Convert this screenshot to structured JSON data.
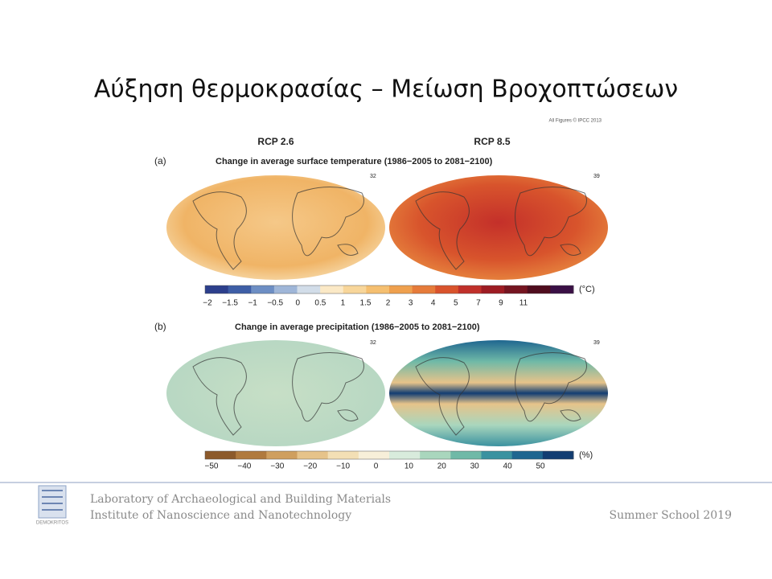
{
  "header": {
    "title": "Αύξηση θερμοκρασίας – Μείωση Βροχοπτώσεων"
  },
  "figure": {
    "credit": "All Figures © IPCC 2013",
    "scenarios": [
      "RCP 2.6",
      "RCP 8.5"
    ],
    "panels": [
      {
        "label": "(a)",
        "caption": "Change in average surface temperature (1986−2005 to 2081−2100)",
        "map_labels": [
          "32",
          "39"
        ],
        "colorbar": {
          "ticks": [
            "−2",
            "−1.5",
            "−1",
            "−0.5",
            "0",
            "0.5",
            "1",
            "1.5",
            "2",
            "3",
            "4",
            "5",
            "7",
            "9",
            "11"
          ],
          "unit": "(°C)",
          "colors": [
            "#2c3f8c",
            "#3e5ea6",
            "#6d8ec4",
            "#9fb6d8",
            "#d2dde9",
            "#fbe9c6",
            "#f8d69a",
            "#f5bf70",
            "#efa04e",
            "#e67b3a",
            "#d9532c",
            "#c0302a",
            "#9d1c23",
            "#751520",
            "#4f0d1e",
            "#3a1045"
          ]
        }
      },
      {
        "label": "(b)",
        "caption": "Change in average precipitation (1986−2005 to 2081−2100)",
        "map_labels": [
          "32",
          "39"
        ],
        "colorbar": {
          "ticks": [
            "−50",
            "−40",
            "−30",
            "−20",
            "−10",
            "0",
            "10",
            "20",
            "30",
            "40",
            "50"
          ],
          "unit": "(%)",
          "colors": [
            "#8c5a2b",
            "#b07a3e",
            "#cf9f5f",
            "#e6c38a",
            "#f3dfb5",
            "#f7efd9",
            "#d8ebdc",
            "#a9d6bd",
            "#6fb9a7",
            "#3b92a0",
            "#1f6690",
            "#123d72"
          ]
        }
      }
    ]
  },
  "footer": {
    "lines": [
      "Laboratory of Archaeological and Building Materials",
      "Institute of Nanoscience and Nanotechnology"
    ],
    "event": "Summer School 2019",
    "logo": "DEMOKRITOS"
  }
}
